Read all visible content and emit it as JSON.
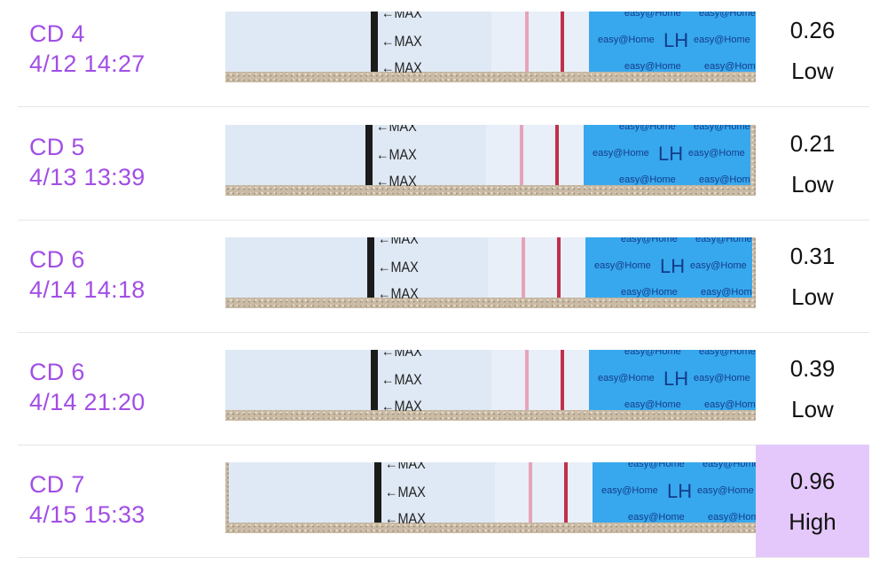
{
  "entries": [
    {
      "cycle_day": "CD 4",
      "datetime": "4/12 14:27",
      "value": "0.26",
      "level": "Low",
      "highlighted": false
    },
    {
      "cycle_day": "CD 5",
      "datetime": "4/13 13:39",
      "value": "0.21",
      "level": "Low",
      "highlighted": false
    },
    {
      "cycle_day": "CD 6",
      "datetime": "4/14 14:18",
      "value": "0.31",
      "level": "Low",
      "highlighted": false
    },
    {
      "cycle_day": "CD 6",
      "datetime": "4/14 21:20",
      "value": "0.39",
      "level": "Low",
      "highlighted": false
    },
    {
      "cycle_day": "CD 7",
      "datetime": "4/15 15:33",
      "value": "0.96",
      "level": "High",
      "highlighted": true
    }
  ],
  "strip": {
    "max_label": "←MAX",
    "brand": "easy@Home",
    "lh": "LH"
  },
  "colors": {
    "accent": "#a24ee6",
    "highlight": "#e5c8fb",
    "strip_blue": "#37a8ee",
    "control_line": "#c0304a"
  }
}
